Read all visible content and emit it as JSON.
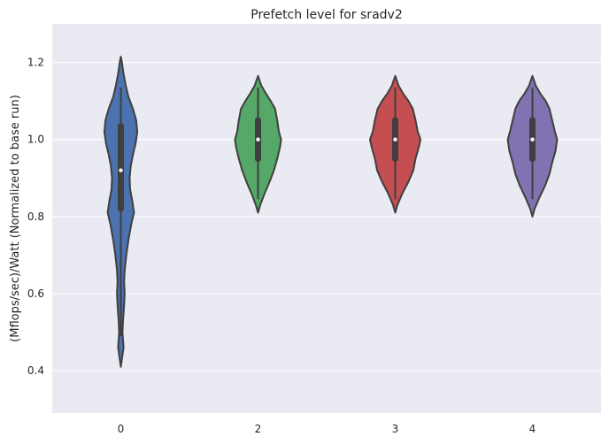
{
  "chart_data": {
    "type": "violin",
    "title": "Prefetch level for sradv2",
    "xlabel": "",
    "ylabel": "(Mflops/sec)/Watt (Normalized to base run)",
    "categories": [
      "0",
      "2",
      "3",
      "4"
    ],
    "y_ticks": [
      "0.4",
      "0.6",
      "0.8",
      "1.0",
      "1.2"
    ],
    "ylim": [
      0.29,
      1.3
    ],
    "grid": true,
    "colors": [
      "#4C72B0",
      "#55A868",
      "#C44E52",
      "#8172B2"
    ],
    "background": "#EAEAF2",
    "violins": [
      {
        "category": "0",
        "median": 0.92,
        "q1": 0.82,
        "q3": 1.035,
        "whisker_low": 0.49,
        "whisker_high": 1.135,
        "profile": [
          [
            0.41,
            0.0
          ],
          [
            0.43,
            0.02
          ],
          [
            0.46,
            0.05
          ],
          [
            0.48,
            0.04
          ],
          [
            0.5,
            0.03
          ],
          [
            0.53,
            0.04
          ],
          [
            0.57,
            0.06
          ],
          [
            0.6,
            0.07
          ],
          [
            0.63,
            0.06
          ],
          [
            0.66,
            0.07
          ],
          [
            0.7,
            0.1
          ],
          [
            0.74,
            0.14
          ],
          [
            0.78,
            0.19
          ],
          [
            0.81,
            0.24
          ],
          [
            0.84,
            0.21
          ],
          [
            0.87,
            0.17
          ],
          [
            0.9,
            0.16
          ],
          [
            0.93,
            0.18
          ],
          [
            0.96,
            0.22
          ],
          [
            0.99,
            0.27
          ],
          [
            1.02,
            0.3
          ],
          [
            1.05,
            0.28
          ],
          [
            1.08,
            0.22
          ],
          [
            1.11,
            0.14
          ],
          [
            1.14,
            0.09
          ],
          [
            1.17,
            0.05
          ],
          [
            1.2,
            0.02
          ],
          [
            1.215,
            0.0
          ]
        ]
      },
      {
        "category": "2",
        "median": 1.0,
        "q1": 0.95,
        "q3": 1.05,
        "whisker_low": 0.845,
        "whisker_high": 1.135,
        "profile": [
          [
            0.81,
            0.0
          ],
          [
            0.83,
            0.04
          ],
          [
            0.86,
            0.12
          ],
          [
            0.89,
            0.21
          ],
          [
            0.92,
            0.29
          ],
          [
            0.95,
            0.35
          ],
          [
            0.98,
            0.4
          ],
          [
            1.0,
            0.42
          ],
          [
            1.02,
            0.38
          ],
          [
            1.05,
            0.35
          ],
          [
            1.08,
            0.31
          ],
          [
            1.1,
            0.23
          ],
          [
            1.12,
            0.14
          ],
          [
            1.14,
            0.06
          ],
          [
            1.165,
            0.0
          ]
        ]
      },
      {
        "category": "3",
        "median": 1.0,
        "q1": 0.95,
        "q3": 1.05,
        "whisker_low": 0.845,
        "whisker_high": 1.135,
        "profile": [
          [
            0.81,
            0.0
          ],
          [
            0.83,
            0.04
          ],
          [
            0.86,
            0.13
          ],
          [
            0.89,
            0.24
          ],
          [
            0.92,
            0.33
          ],
          [
            0.95,
            0.37
          ],
          [
            0.98,
            0.43
          ],
          [
            1.0,
            0.46
          ],
          [
            1.02,
            0.41
          ],
          [
            1.05,
            0.37
          ],
          [
            1.08,
            0.32
          ],
          [
            1.1,
            0.24
          ],
          [
            1.12,
            0.14
          ],
          [
            1.14,
            0.06
          ],
          [
            1.165,
            0.0
          ]
        ]
      },
      {
        "category": "4",
        "median": 1.0,
        "q1": 0.95,
        "q3": 1.05,
        "whisker_low": 0.845,
        "whisker_high": 1.135,
        "profile": [
          [
            0.8,
            0.0
          ],
          [
            0.82,
            0.04
          ],
          [
            0.85,
            0.13
          ],
          [
            0.88,
            0.23
          ],
          [
            0.91,
            0.31
          ],
          [
            0.94,
            0.36
          ],
          [
            0.97,
            0.42
          ],
          [
            1.0,
            0.45
          ],
          [
            1.02,
            0.41
          ],
          [
            1.05,
            0.36
          ],
          [
            1.08,
            0.31
          ],
          [
            1.1,
            0.24
          ],
          [
            1.12,
            0.14
          ],
          [
            1.14,
            0.06
          ],
          [
            1.165,
            0.0
          ]
        ]
      }
    ]
  }
}
